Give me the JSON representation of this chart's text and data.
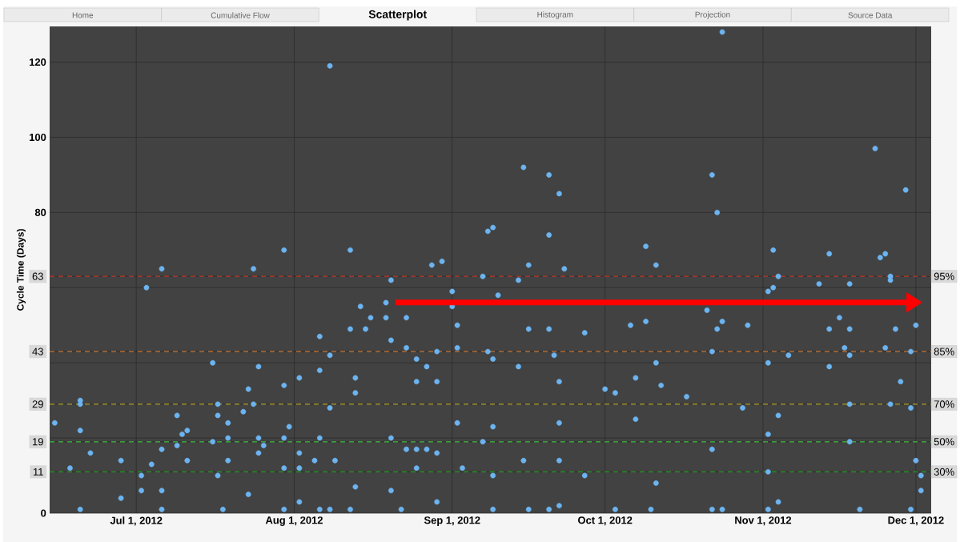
{
  "chart_data": {
    "type": "scatter",
    "title": "Scatterplot",
    "annotations": [
      "Home",
      "Cumulative Flow",
      "Histogram",
      "Projection",
      "Source Data",
      {
        "text": "95%",
        "y": 63
      },
      {
        "text": "85%",
        "y": 43
      },
      {
        "text": "70%",
        "y": 29
      },
      {
        "text": "50%",
        "y": 19
      },
      {
        "text": "30%",
        "y": 11
      }
    ],
    "ylabel": "Cycle Time (Days)",
    "xlim": [
      "2012-06-14",
      "2012-12-04"
    ],
    "xticks": [
      {
        "value": "2012-07-01",
        "label": "Jul 1, 2012"
      },
      {
        "value": "2012-08-01",
        "label": "Aug 1, 2012"
      },
      {
        "value": "2012-09-01",
        "label": "Sep 1, 2012"
      },
      {
        "value": "2012-10-01",
        "label": "Oct 1, 2012"
      },
      {
        "value": "2012-11-01",
        "label": "Nov 1, 2012"
      },
      {
        "value": "2012-12-01",
        "label": "Dec 1, 2012"
      }
    ],
    "ylim": [
      0,
      129.5
    ],
    "yticks": [
      0,
      11,
      19,
      {
        "value": 20,
        "label": null
      },
      29,
      {
        "value": 40,
        "label": null
      },
      43,
      {
        "value": 60,
        "label": null
      },
      63,
      80,
      100,
      120
    ],
    "grid": true,
    "marker": "circle",
    "color": "#6cb4f0",
    "ref_lines": [
      {
        "axis": "y",
        "value": 63,
        "color": "#c0392b",
        "line_style": "dashed"
      },
      {
        "axis": "y",
        "value": 43,
        "color": "#c87533",
        "line_style": "dashed"
      },
      {
        "axis": "y",
        "value": 29,
        "color": "#b0a020",
        "line_style": "dashed"
      },
      {
        "axis": "y",
        "value": 19,
        "color": "#3cc03c",
        "line_style": "dashed"
      },
      {
        "axis": "y",
        "value": 11,
        "color": "#1f9a1f",
        "line_style": "dashed"
      }
    ],
    "x": [
      "2012-06-15",
      "2012-06-18",
      "2012-06-20",
      "2012-06-20",
      "2012-06-20",
      "2012-06-20",
      "2012-06-22",
      "2012-06-28",
      "2012-06-28",
      "2012-07-02",
      "2012-07-02",
      "2012-07-03",
      "2012-07-04",
      "2012-07-06",
      "2012-07-06",
      "2012-07-06",
      "2012-07-06",
      "2012-07-09",
      "2012-07-09",
      "2012-07-10",
      "2012-07-11",
      "2012-07-11",
      "2012-07-16",
      "2012-07-16",
      "2012-07-17",
      "2012-07-17",
      "2012-07-17",
      "2012-07-18",
      "2012-07-19",
      "2012-07-19",
      "2012-07-19",
      "2012-07-22",
      "2012-07-23",
      "2012-07-23",
      "2012-07-24",
      "2012-07-24",
      "2012-07-25",
      "2012-07-25",
      "2012-07-25",
      "2012-07-26",
      "2012-07-30",
      "2012-07-30",
      "2012-07-30",
      "2012-07-30",
      "2012-07-30",
      "2012-07-31",
      "2012-08-02",
      "2012-08-02",
      "2012-08-02",
      "2012-08-02",
      "2012-08-05",
      "2012-08-06",
      "2012-08-06",
      "2012-08-06",
      "2012-08-06",
      "2012-08-08",
      "2012-08-08",
      "2012-08-08",
      "2012-08-08",
      "2012-08-09",
      "2012-08-12",
      "2012-08-12",
      "2012-08-12",
      "2012-08-13",
      "2012-08-13",
      "2012-08-13",
      "2012-08-14",
      "2012-08-15",
      "2012-08-16",
      "2012-08-19",
      "2012-08-19",
      "2012-08-20",
      "2012-08-20",
      "2012-08-20",
      "2012-08-20",
      "2012-08-22",
      "2012-08-23",
      "2012-08-23",
      "2012-08-23",
      "2012-08-25",
      "2012-08-25",
      "2012-08-25",
      "2012-08-25",
      "2012-08-27",
      "2012-08-27",
      "2012-08-28",
      "2012-08-29",
      "2012-08-29",
      "2012-08-29",
      "2012-08-29",
      "2012-08-30",
      "2012-09-01",
      "2012-09-01",
      "2012-09-02",
      "2012-09-02",
      "2012-09-02",
      "2012-09-03",
      "2012-09-07",
      "2012-09-07",
      "2012-09-08",
      "2012-09-08",
      "2012-09-09",
      "2012-09-09",
      "2012-09-09",
      "2012-09-09",
      "2012-09-09",
      "2012-09-10",
      "2012-09-14",
      "2012-09-14",
      "2012-09-15",
      "2012-09-15",
      "2012-09-16",
      "2012-09-16",
      "2012-09-16",
      "2012-09-20",
      "2012-09-20",
      "2012-09-20",
      "2012-09-20",
      "2012-09-21",
      "2012-09-22",
      "2012-09-22",
      "2012-09-22",
      "2012-09-22",
      "2012-09-22",
      "2012-09-23",
      "2012-09-27",
      "2012-09-27",
      "2012-10-01",
      "2012-10-03",
      "2012-10-03",
      "2012-10-06",
      "2012-10-07",
      "2012-10-07",
      "2012-10-09",
      "2012-10-09",
      "2012-10-10",
      "2012-10-11",
      "2012-10-11",
      "2012-10-11",
      "2012-10-12",
      "2012-10-17",
      "2012-10-21",
      "2012-10-22",
      "2012-10-22",
      "2012-10-22",
      "2012-10-22",
      "2012-10-23",
      "2012-10-23",
      "2012-10-24",
      "2012-10-24",
      "2012-10-24",
      "2012-10-28",
      "2012-10-29",
      "2012-11-02",
      "2012-11-02",
      "2012-11-02",
      "2012-11-02",
      "2012-11-02",
      "2012-11-03",
      "2012-11-03",
      "2012-11-04",
      "2012-11-04",
      "2012-11-04",
      "2012-11-06",
      "2012-11-12",
      "2012-11-14",
      "2012-11-14",
      "2012-11-14",
      "2012-11-16",
      "2012-11-17",
      "2012-11-18",
      "2012-11-18",
      "2012-11-18",
      "2012-11-18",
      "2012-11-18",
      "2012-11-20",
      "2012-11-23",
      "2012-11-24",
      "2012-11-25",
      "2012-11-26",
      "2012-11-26",
      "2012-11-27",
      "2012-11-25",
      "2012-11-26",
      "2012-11-29",
      "2012-12-01",
      "2012-11-28",
      "2012-11-30",
      "2012-11-30",
      "2012-11-30",
      "2012-12-01",
      "2012-12-02",
      "2012-12-02"
    ],
    "values": [
      24,
      12,
      30,
      29,
      22,
      1,
      16,
      14,
      4,
      10,
      6,
      60,
      13,
      65,
      17,
      6,
      1,
      18,
      26,
      21,
      22,
      14,
      40,
      19,
      29,
      26,
      10,
      1,
      24,
      20,
      14,
      27,
      5,
      33,
      65,
      29,
      20,
      16,
      39,
      18,
      70,
      34,
      20,
      12,
      1,
      23,
      36,
      16,
      12,
      3,
      14,
      38,
      1,
      47,
      20,
      119,
      42,
      28,
      1,
      14,
      1,
      49,
      70,
      36,
      32,
      7,
      55,
      49,
      52,
      52,
      56,
      62,
      46,
      20,
      6,
      1,
      52,
      44,
      17,
      41,
      35,
      17,
      12,
      39,
      17,
      66,
      35,
      43,
      16,
      3,
      67,
      55,
      59,
      50,
      24,
      44,
      12,
      19,
      63,
      43,
      75,
      76,
      41,
      23,
      10,
      1,
      58,
      62,
      39,
      92,
      14,
      66,
      49,
      1,
      1,
      90,
      74,
      49,
      42,
      85,
      35,
      24,
      14,
      2,
      65,
      48,
      10,
      33,
      32,
      1,
      50,
      36,
      25,
      51,
      71,
      1,
      66,
      40,
      8,
      34,
      31,
      54,
      90,
      43,
      17,
      1,
      80,
      49,
      128,
      51,
      1,
      28,
      50,
      21,
      59,
      40,
      11,
      1,
      60,
      70,
      63,
      26,
      3,
      42,
      61,
      69,
      49,
      39,
      52,
      44,
      49,
      42,
      29,
      61,
      19,
      1,
      97,
      68,
      69,
      63,
      62,
      49,
      44,
      29,
      86,
      50,
      35,
      43,
      28,
      1,
      14,
      10,
      6
    ]
  }
}
